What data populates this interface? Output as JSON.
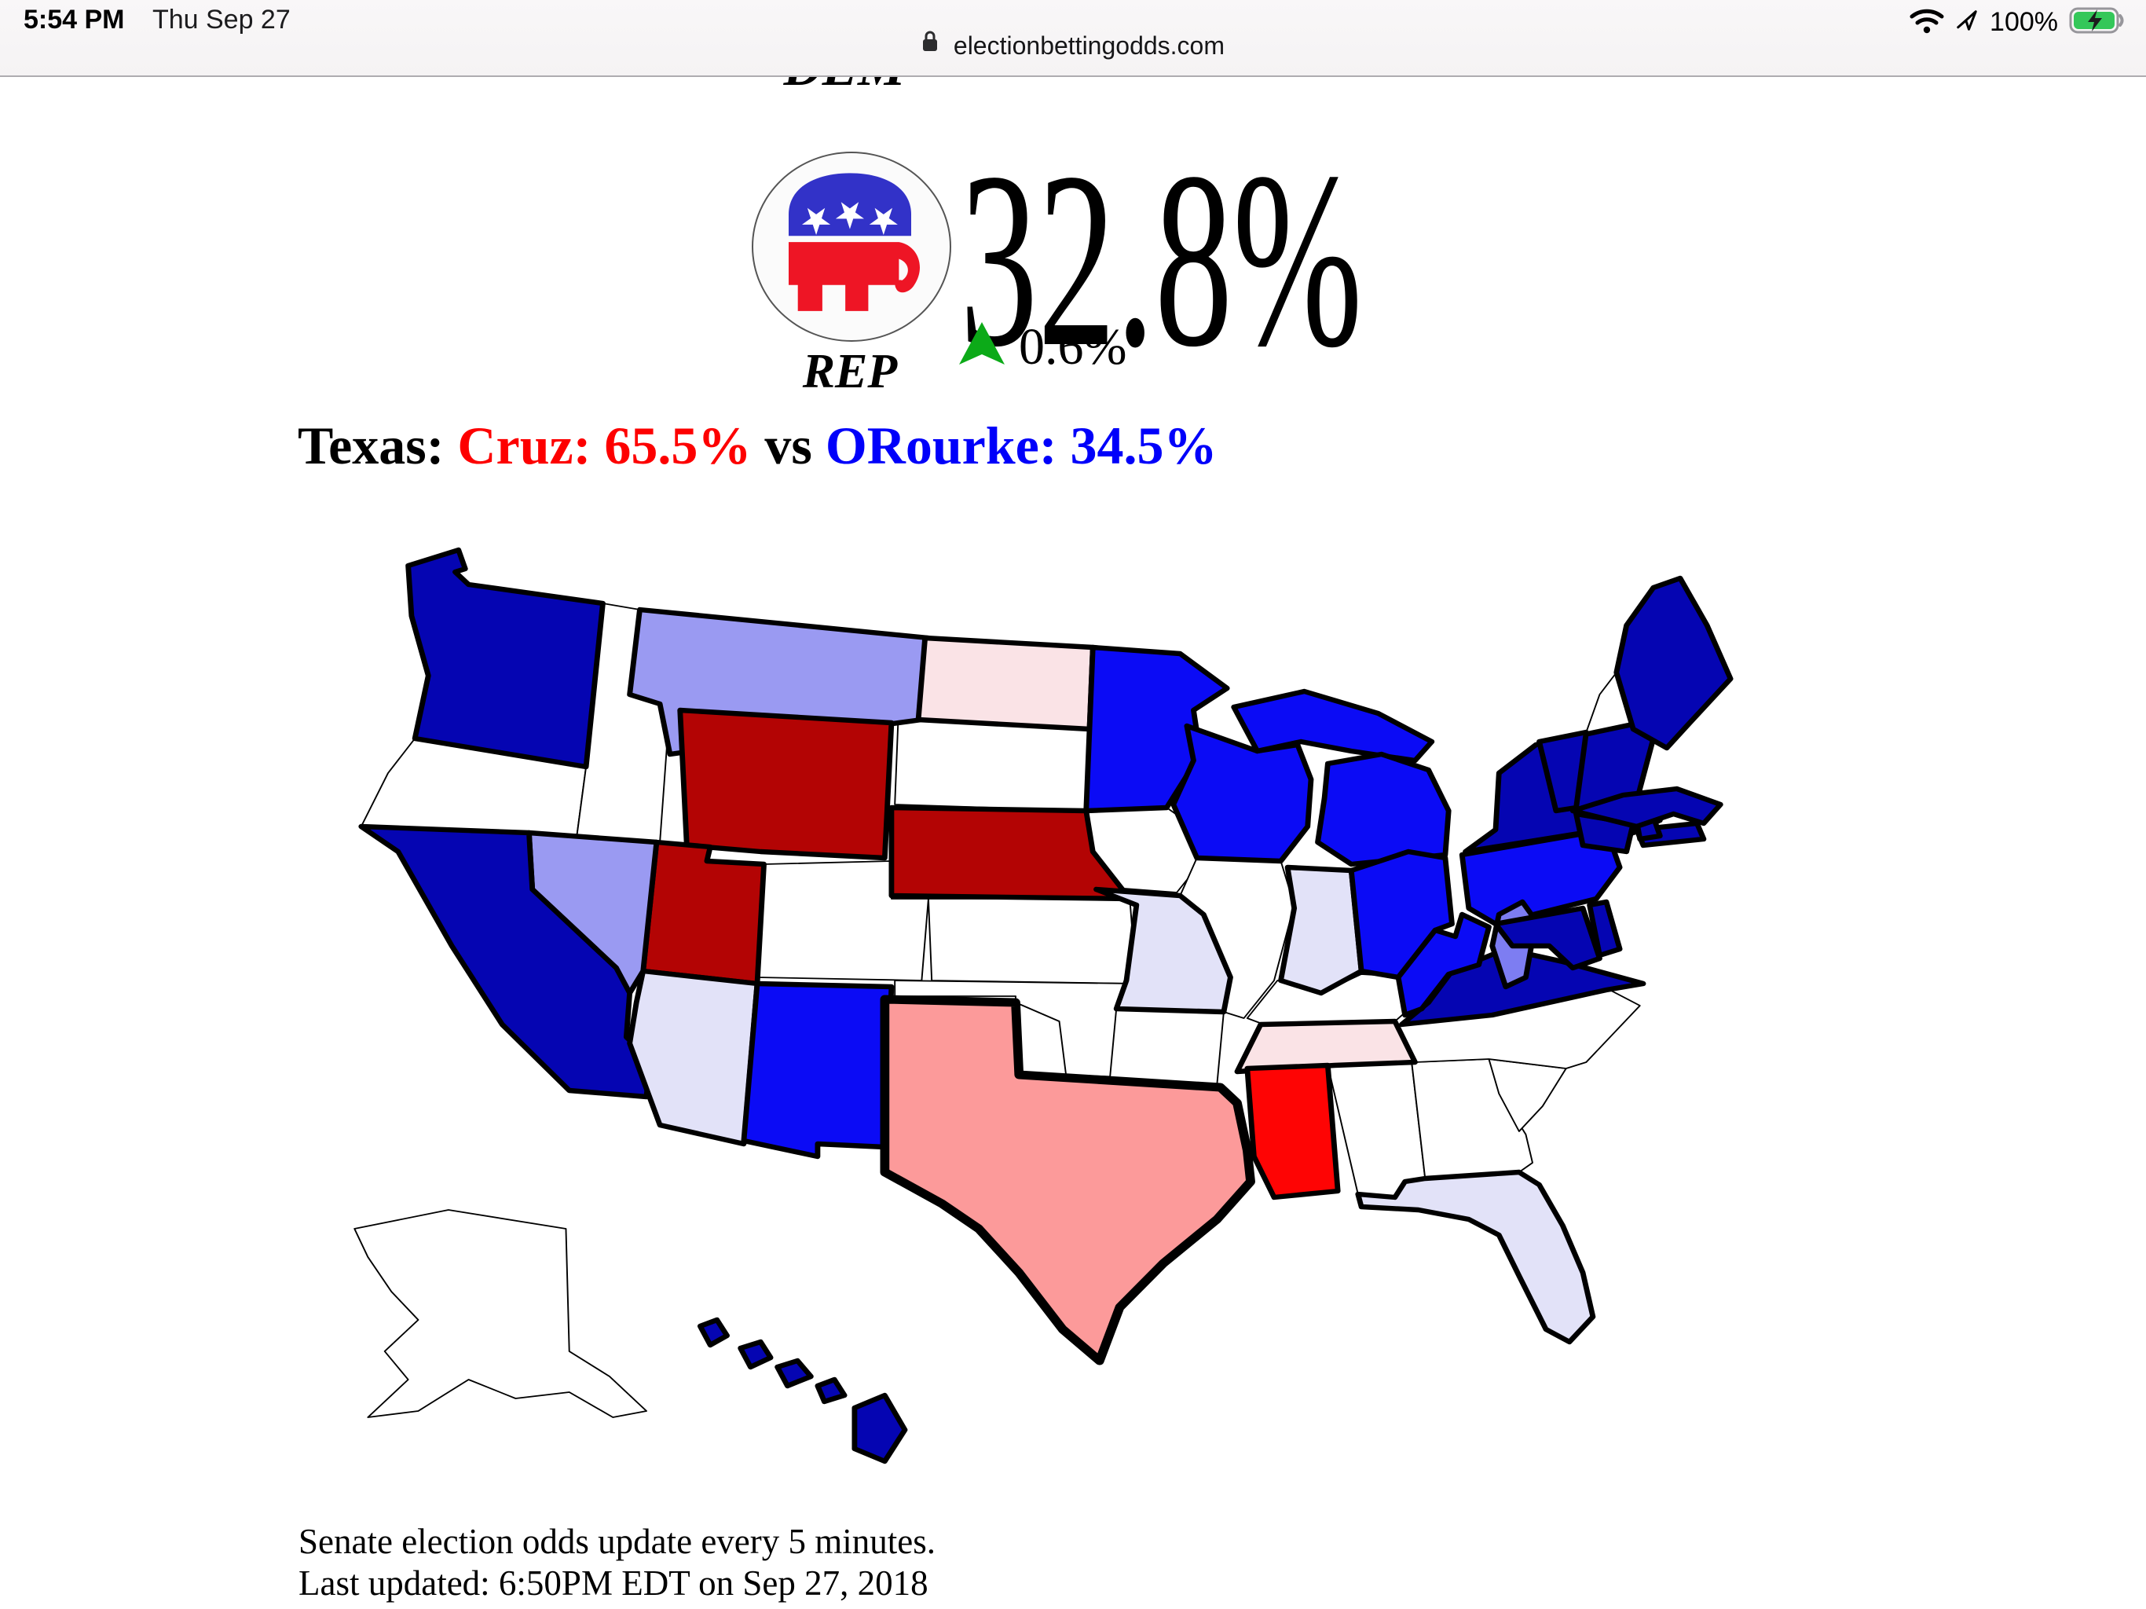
{
  "status_bar": {
    "time": "5:54 PM",
    "date": "Thu Sep 27",
    "battery_percent": "100%"
  },
  "browser_chrome": {
    "url_host": "electionbettingodds.com"
  },
  "header": {
    "clipped_dem_label": "DEM",
    "rep_label": "REP",
    "rep_odds": "32.8%",
    "rep_change": "0.6%",
    "change_direction": "up"
  },
  "headline": {
    "prefix": "Texas: ",
    "rep_candidate": "Cruz: 65.5%",
    "separator": " vs ",
    "dem_candidate": "ORourke: 34.5%"
  },
  "footer": {
    "line1": "Senate election odds update every 5 minutes.",
    "line2": "Last updated: 6:50PM EDT on Sep 27, 2018"
  },
  "colors": {
    "rep_red": "#fd0000",
    "dem_blue": "#0000fa",
    "change_green": "#0caa18",
    "navy": "#0505b2",
    "bright_blue": "#0b0bf5",
    "periwinkle": "#9a9af2",
    "nj_purple": "#7d7df2",
    "lavender": "#e2e2f8",
    "light_pink": "#fae3e6",
    "salmon": "#fc9a9a",
    "red": "#fe0404",
    "dark_red": "#b30404",
    "white": "#ffffff"
  },
  "map": {
    "states": [
      {
        "id": "WA",
        "fill": "navy",
        "race": true
      },
      {
        "id": "OR",
        "fill": "white",
        "race": false
      },
      {
        "id": "ID",
        "fill": "white",
        "race": false
      },
      {
        "id": "MT",
        "fill": "periwinkle",
        "race": true
      },
      {
        "id": "WY",
        "fill": "dark_red",
        "race": true
      },
      {
        "id": "UT",
        "fill": "dark_red",
        "race": true
      },
      {
        "id": "CO",
        "fill": "white",
        "race": false
      },
      {
        "id": "NV",
        "fill": "periwinkle",
        "race": true
      },
      {
        "id": "CA",
        "fill": "navy",
        "race": true
      },
      {
        "id": "AZ",
        "fill": "lavender",
        "race": true
      },
      {
        "id": "NM",
        "fill": "bright_blue",
        "race": true
      },
      {
        "id": "ND",
        "fill": "light_pink",
        "race": true
      },
      {
        "id": "SD",
        "fill": "white",
        "race": false
      },
      {
        "id": "NE",
        "fill": "dark_red",
        "race": true
      },
      {
        "id": "KS",
        "fill": "white",
        "race": false
      },
      {
        "id": "OK",
        "fill": "white",
        "race": false
      },
      {
        "id": "TX",
        "fill": "salmon",
        "race": true
      },
      {
        "id": "MN",
        "fill": "bright_blue",
        "race": true
      },
      {
        "id": "IA",
        "fill": "white",
        "race": false
      },
      {
        "id": "MO",
        "fill": "lavender",
        "race": true
      },
      {
        "id": "AR",
        "fill": "white",
        "race": false
      },
      {
        "id": "LA",
        "fill": "white",
        "race": false
      },
      {
        "id": "WI",
        "fill": "bright_blue",
        "race": true
      },
      {
        "id": "MI",
        "fill": "bright_blue",
        "race": true
      },
      {
        "id": "IL",
        "fill": "white",
        "race": false
      },
      {
        "id": "IN",
        "fill": "lavender",
        "race": true
      },
      {
        "id": "OH",
        "fill": "bright_blue",
        "race": true
      },
      {
        "id": "KY",
        "fill": "white",
        "race": false
      },
      {
        "id": "TN",
        "fill": "light_pink",
        "race": true
      },
      {
        "id": "MS",
        "fill": "red",
        "race": true
      },
      {
        "id": "AL",
        "fill": "white",
        "race": false
      },
      {
        "id": "GA",
        "fill": "white",
        "race": false
      },
      {
        "id": "FL",
        "fill": "lavender",
        "race": true
      },
      {
        "id": "SC",
        "fill": "white",
        "race": false
      },
      {
        "id": "NC",
        "fill": "white",
        "race": false
      },
      {
        "id": "VA",
        "fill": "navy",
        "race": true
      },
      {
        "id": "WV",
        "fill": "bright_blue",
        "race": true
      },
      {
        "id": "PA",
        "fill": "bright_blue",
        "race": true
      },
      {
        "id": "NY",
        "fill": "navy",
        "race": true
      },
      {
        "id": "NJ",
        "fill": "nj_purple",
        "race": true
      },
      {
        "id": "DE",
        "fill": "navy",
        "race": true
      },
      {
        "id": "MD",
        "fill": "navy",
        "race": true
      },
      {
        "id": "CT",
        "fill": "navy",
        "race": true
      },
      {
        "id": "RI",
        "fill": "navy",
        "race": true
      },
      {
        "id": "MA",
        "fill": "navy",
        "race": true
      },
      {
        "id": "VT",
        "fill": "navy",
        "race": true
      },
      {
        "id": "NH",
        "fill": "white",
        "race": false
      },
      {
        "id": "ME",
        "fill": "navy",
        "race": true
      },
      {
        "id": "AK",
        "fill": "white",
        "race": false
      },
      {
        "id": "HI",
        "fill": "navy",
        "race": true
      }
    ]
  }
}
